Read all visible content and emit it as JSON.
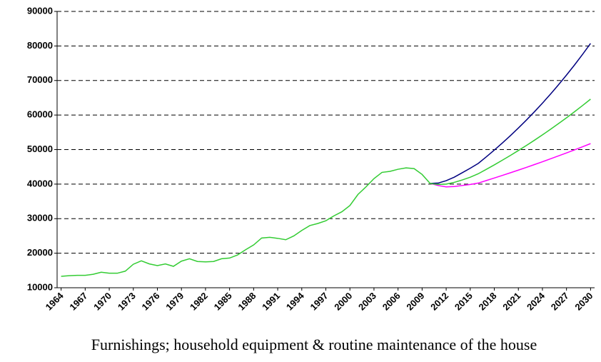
{
  "chart_data": {
    "type": "line",
    "title": "Furnishings; household equipment & routine maintenance of the house",
    "x": [
      1964,
      1965,
      1966,
      1967,
      1968,
      1969,
      1970,
      1971,
      1972,
      1973,
      1974,
      1975,
      1976,
      1977,
      1978,
      1979,
      1980,
      1981,
      1982,
      1983,
      1984,
      1985,
      1986,
      1987,
      1988,
      1989,
      1990,
      1991,
      1992,
      1993,
      1994,
      1995,
      1996,
      1997,
      1998,
      1999,
      2000,
      2001,
      2002,
      2003,
      2004,
      2005,
      2006,
      2007,
      2008,
      2009,
      2010,
      2011,
      2012,
      2013,
      2014,
      2015,
      2016,
      2017,
      2018,
      2019,
      2020,
      2021,
      2022,
      2023,
      2024,
      2025,
      2026,
      2027,
      2028,
      2029,
      2030
    ],
    "series": [
      {
        "color": "#000080",
        "values": [
          null,
          null,
          null,
          null,
          null,
          null,
          null,
          null,
          null,
          null,
          null,
          null,
          null,
          null,
          null,
          null,
          null,
          null,
          null,
          null,
          null,
          null,
          null,
          null,
          null,
          null,
          null,
          null,
          null,
          null,
          null,
          null,
          null,
          null,
          null,
          null,
          null,
          null,
          null,
          null,
          null,
          null,
          null,
          null,
          null,
          null,
          40200,
          40300,
          41000,
          42000,
          43300,
          44600,
          46000,
          47890,
          49850,
          51890,
          54020,
          56240,
          58540,
          60940,
          63440,
          66040,
          68750,
          71570,
          74500,
          77560,
          80740
        ]
      },
      {
        "color": "#ff00ff",
        "values": [
          null,
          null,
          null,
          null,
          null,
          null,
          null,
          null,
          null,
          null,
          null,
          null,
          null,
          null,
          null,
          null,
          null,
          null,
          null,
          null,
          null,
          null,
          null,
          null,
          null,
          null,
          null,
          null,
          null,
          null,
          null,
          null,
          null,
          null,
          null,
          null,
          null,
          null,
          null,
          null,
          null,
          null,
          null,
          null,
          null,
          null,
          40200,
          39600,
          39200,
          39300,
          39600,
          39900,
          40300,
          41030,
          41770,
          42520,
          43280,
          44060,
          44850,
          45660,
          46480,
          47320,
          48170,
          49030,
          49920,
          50820,
          51730
        ]
      },
      {
        "color": "#33cc33",
        "values": [
          13300,
          13500,
          13600,
          13600,
          13900,
          14500,
          14200,
          14200,
          14800,
          16800,
          17800,
          16900,
          16400,
          16900,
          16200,
          17700,
          18400,
          17600,
          17500,
          17600,
          18400,
          18600,
          19500,
          21000,
          22400,
          24400,
          24600,
          24300,
          23900,
          25000,
          26600,
          28000,
          28600,
          29400,
          30800,
          32000,
          33800,
          37000,
          39200,
          41600,
          43400,
          43700,
          44300,
          44700,
          44500,
          42800,
          40200,
          39900,
          40000,
          40500,
          41200,
          42000,
          43000,
          44270,
          45570,
          46920,
          48300,
          49730,
          51190,
          52700,
          54260,
          55860,
          57510,
          59200,
          60950,
          62750,
          64600
        ]
      }
    ],
    "xlim": [
      1963.5,
      2030.5
    ],
    "xticks": [
      1964,
      1967,
      1970,
      1973,
      1976,
      1979,
      1982,
      1985,
      1988,
      1991,
      1994,
      1997,
      2000,
      2003,
      2006,
      2009,
      2012,
      2015,
      2018,
      2021,
      2024,
      2027,
      2030
    ],
    "ylim": [
      10000,
      90000
    ],
    "yticks": [
      10000,
      20000,
      30000,
      40000,
      50000,
      60000,
      70000,
      80000,
      90000
    ],
    "grid": true
  }
}
